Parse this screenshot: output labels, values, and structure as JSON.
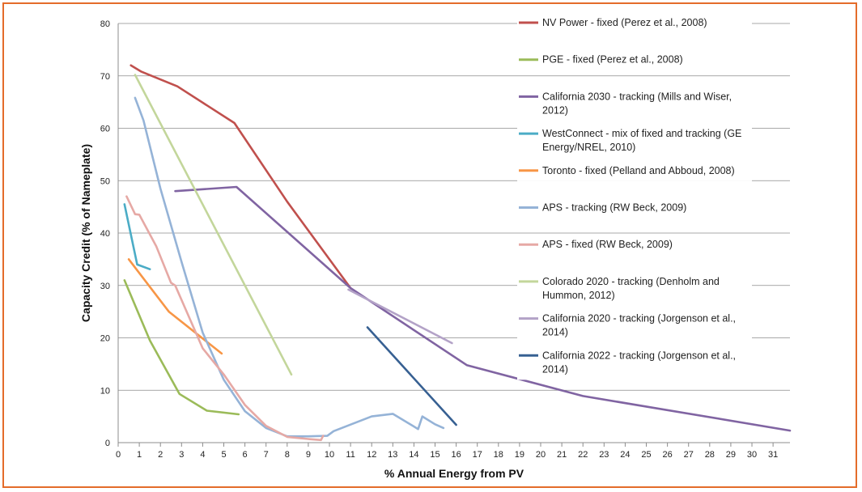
{
  "chart_data": {
    "type": "line",
    "title": "",
    "xlabel": "% Annual Energy from PV",
    "ylabel": "Capacity Credit (% of Nameplate)",
    "xlim": [
      0,
      31.8
    ],
    "ylim": [
      0,
      80
    ],
    "x_ticks": [
      0,
      1,
      2,
      3,
      4,
      5,
      6,
      7,
      8,
      9,
      10,
      11,
      12,
      13,
      14,
      15,
      16,
      17,
      18,
      19,
      20,
      21,
      22,
      23,
      24,
      25,
      26,
      27,
      28,
      29,
      30,
      31
    ],
    "y_ticks": [
      0,
      10,
      20,
      30,
      40,
      50,
      60,
      70,
      80
    ],
    "grid": "horizontal",
    "legend_position": "right",
    "series": [
      {
        "name": "NV Power - fixed (Perez et al., 2008)",
        "color": "#C0504D",
        "points": [
          [
            0.6,
            72
          ],
          [
            1.1,
            70.8
          ],
          [
            2.8,
            68
          ],
          [
            5.5,
            61
          ],
          [
            8,
            46
          ],
          [
            11,
            29.5
          ]
        ]
      },
      {
        "name": "PGE - fixed (Perez et al., 2008)",
        "color": "#9BBB59",
        "points": [
          [
            0.3,
            31
          ],
          [
            1.5,
            19.5
          ],
          [
            2.9,
            9.3
          ],
          [
            4.2,
            6.1
          ],
          [
            5.7,
            5.4
          ]
        ]
      },
      {
        "name": "California 2030 - tracking (Mills and Wiser, 2012)",
        "color": "#8064A2",
        "points": [
          [
            2.7,
            48
          ],
          [
            5.6,
            48.8
          ],
          [
            11,
            29.5
          ],
          [
            16.5,
            14.8
          ],
          [
            22,
            8.9
          ],
          [
            31.8,
            2.3
          ]
        ]
      },
      {
        "name": "WestConnect - mix of fixed and tracking (GE Energy/NREL, 2010)",
        "color": "#4BACC6",
        "points": [
          [
            0.3,
            45.5
          ],
          [
            0.9,
            34
          ],
          [
            1.5,
            33.1
          ]
        ]
      },
      {
        "name": "Toronto - fixed (Pelland and Abboud, 2008)",
        "color": "#F79646",
        "points": [
          [
            0.5,
            35
          ],
          [
            2.4,
            25
          ],
          [
            4.9,
            17
          ]
        ]
      },
      {
        "name": "APS - tracking (RW Beck, 2009)",
        "color": "#95B3D7",
        "points": [
          [
            0.8,
            65.8
          ],
          [
            1.2,
            61.5
          ],
          [
            2,
            48.5
          ],
          [
            3,
            34.5
          ],
          [
            4,
            21
          ],
          [
            5,
            12
          ],
          [
            6,
            6
          ],
          [
            7,
            2.8
          ],
          [
            8,
            1.2
          ],
          [
            9,
            1.2
          ],
          [
            9.9,
            1.3
          ],
          [
            10.2,
            2.2
          ],
          [
            12,
            5
          ],
          [
            13,
            5.5
          ],
          [
            14.2,
            2.6
          ],
          [
            14.4,
            5
          ],
          [
            15,
            3.5
          ],
          [
            15.4,
            2.8
          ]
        ]
      },
      {
        "name": "APS - fixed (RW Beck, 2009)",
        "color": "#E6A9A5",
        "points": [
          [
            0.4,
            47
          ],
          [
            0.8,
            43.6
          ],
          [
            1,
            43.5
          ],
          [
            1.8,
            37.5
          ],
          [
            2.5,
            30.5
          ],
          [
            2.7,
            30
          ],
          [
            4,
            18
          ],
          [
            5,
            13
          ],
          [
            6,
            7.2
          ],
          [
            7,
            3.2
          ],
          [
            8,
            1.1
          ],
          [
            9,
            0.7
          ],
          [
            9.6,
            0.5
          ],
          [
            9.7,
            1.3
          ]
        ]
      },
      {
        "name": "Colorado 2020 - tracking (Denholm and Hummon, 2012)",
        "color": "#C3D69B",
        "points": [
          [
            0.8,
            70.2
          ],
          [
            8.2,
            13
          ]
        ]
      },
      {
        "name": "California 2020 - tracking (Jorgenson et al., 2014)",
        "color": "#B3A2C7",
        "points": [
          [
            10.9,
            29.2
          ],
          [
            15.8,
            19
          ]
        ]
      },
      {
        "name": "California 2022 - tracking  (Jorgenson et al., 2014)",
        "color": "#376092",
        "points": [
          [
            11.8,
            22
          ],
          [
            16,
            3.4
          ]
        ]
      }
    ]
  }
}
